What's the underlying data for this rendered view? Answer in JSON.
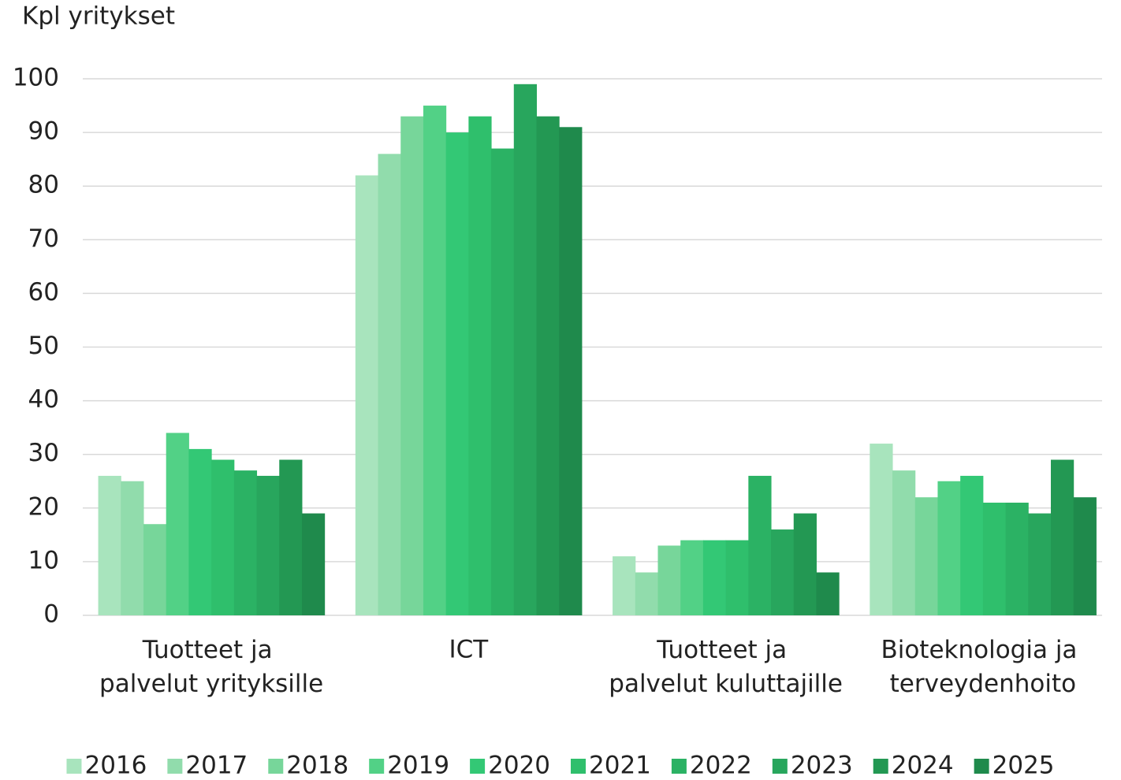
{
  "chart_data": {
    "type": "bar",
    "y_label": "Kpl yritykset",
    "categories": [
      "Tuotteet ja palvelut yrityksille",
      "ICT",
      "Tuotteet ja palvelut kuluttajille",
      "Bioteknologia ja terveydenhoito"
    ],
    "series": [
      {
        "name": "2016",
        "color": "#a8e4bd",
        "values": [
          26,
          82,
          11,
          32
        ]
      },
      {
        "name": "2017",
        "color": "#91dcac",
        "values": [
          25,
          86,
          8,
          27
        ]
      },
      {
        "name": "2018",
        "color": "#77d69a",
        "values": [
          17,
          93,
          13,
          22
        ]
      },
      {
        "name": "2019",
        "color": "#52d186",
        "values": [
          34,
          95,
          14,
          25
        ]
      },
      {
        "name": "2020",
        "color": "#33c875",
        "values": [
          31,
          90,
          14,
          26
        ]
      },
      {
        "name": "2021",
        "color": "#2fbf6c",
        "values": [
          29,
          93,
          14,
          21
        ]
      },
      {
        "name": "2022",
        "color": "#2bb264",
        "values": [
          27,
          87,
          26,
          21
        ]
      },
      {
        "name": "2023",
        "color": "#28a65d",
        "values": [
          26,
          99,
          16,
          19
        ]
      },
      {
        "name": "2024",
        "color": "#239853",
        "values": [
          29,
          93,
          19,
          29
        ]
      },
      {
        "name": "2025",
        "color": "#1f8a4c",
        "values": [
          19,
          91,
          8,
          22
        ]
      }
    ],
    "ylim": [
      0,
      100
    ],
    "yticks": [
      0,
      10,
      20,
      30,
      40,
      50,
      60,
      70,
      80,
      90,
      100
    ],
    "grid": true,
    "legend": "bottom"
  }
}
